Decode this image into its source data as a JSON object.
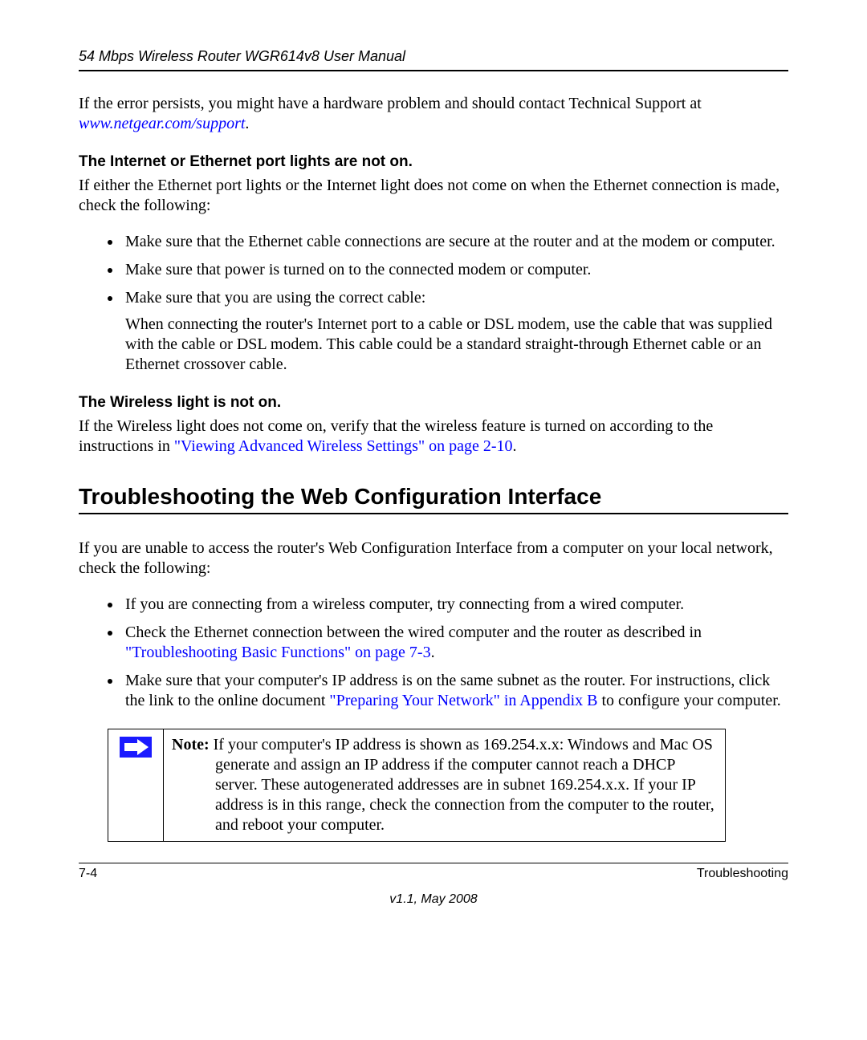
{
  "header": {
    "doc_title": "54 Mbps Wireless Router WGR614v8 User Manual"
  },
  "intro": {
    "error_text_before": "If the error persists, you might have a hardware problem and should contact Technical Support at ",
    "support_link": "www.netgear.com/support",
    "error_text_after": "."
  },
  "sec1": {
    "heading": "The Internet or Ethernet port lights are not on.",
    "para": "If either the Ethernet port lights or the Internet light does not come on when the Ethernet connection is made, check the following:",
    "b1": "Make sure that the Ethernet cable connections are secure at the router and at the modem or computer.",
    "b2": "Make sure that power is turned on to the connected modem or computer.",
    "b3": "Make sure that you are using the correct cable:",
    "b3_sub": "When connecting the router's Internet port to a cable or DSL modem, use the cable that was supplied with the cable or DSL modem. This cable could be a standard straight-through Ethernet cable or an Ethernet crossover cable."
  },
  "sec2": {
    "heading": "The Wireless light is not on.",
    "para_before": "If the Wireless light does not come on, verify that the wireless feature is turned on according to the instructions in ",
    "link": "\"Viewing Advanced Wireless Settings\" on page 2-10",
    "para_after": "."
  },
  "sec3": {
    "title": "Troubleshooting the Web Configuration Interface",
    "para": "If you are unable to access the router's Web Configuration Interface from a computer on your local network, check the following:",
    "b1": "If you are connecting from a wireless computer, try connecting from a wired computer.",
    "b2_before": "Check the Ethernet connection between the wired computer and the router as described in ",
    "b2_link": "\"Troubleshooting Basic Functions\" on page 7-3",
    "b2_after": ".",
    "b3_before": "Make sure that your computer's IP address is on the same subnet as the router. For instructions, click the link to the online document ",
    "b3_link": "\"Preparing Your Network\" in Appendix B",
    "b3_after": " to configure your computer."
  },
  "note": {
    "label": "Note: ",
    "first_line": "If your computer's IP address is shown as 169.254.x.x: Windows and Mac OS",
    "rest": "generate and assign an IP address if the computer cannot reach a DHCP server. These autogenerated addresses are in subnet 169.254.x.x. If your IP address is in this range, check the connection from the computer to the router, and reboot your computer."
  },
  "footer": {
    "page_num": "7-4",
    "section": "Troubleshooting",
    "version": "v1.1, May 2008"
  }
}
